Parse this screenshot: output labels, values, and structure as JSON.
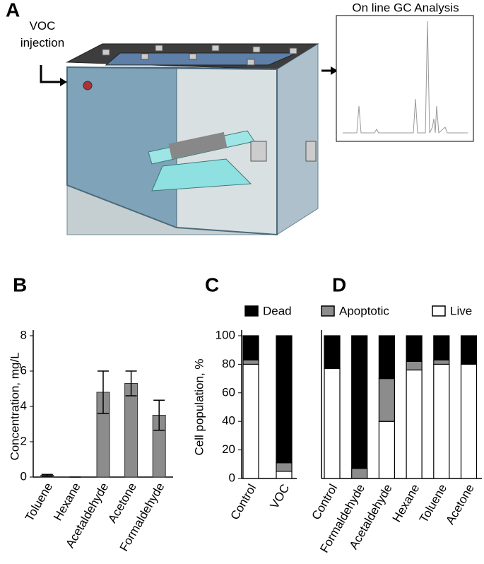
{
  "panel_a": {
    "label": "A",
    "injection_label": "VOC injection",
    "gc_title": "On line GC Analysis"
  },
  "chart_data": [
    {
      "type": "bar",
      "label": "B",
      "y_label": "Concentration, mg/L",
      "categories": [
        "Toluene",
        "Hexane",
        "Acetaldehyde",
        "Acetone",
        "Formaldehyde"
      ],
      "values": [
        0.1,
        0,
        4.8,
        5.3,
        3.5
      ],
      "errors": [
        0.05,
        0,
        1.2,
        0.7,
        0.85
      ],
      "color": "#8c8c8c",
      "ylim": [
        0,
        8
      ],
      "yticks": [
        0,
        2,
        4,
        6,
        8
      ]
    },
    {
      "type": "stacked_bar",
      "label": "C",
      "y_label": "Cell population, %",
      "categories": [
        "Control",
        "VOC"
      ],
      "series": [
        {
          "name": "Live",
          "color": "#ffffff",
          "values": [
            80,
            5
          ]
        },
        {
          "name": "Apoptotic",
          "color": "#8c8c8c",
          "values": [
            3,
            6
          ]
        },
        {
          "name": "Dead",
          "color": "#000000",
          "values": [
            17,
            89
          ]
        }
      ],
      "ylim": [
        0,
        100
      ],
      "yticks": [
        0,
        20,
        40,
        60,
        80,
        100
      ]
    },
    {
      "type": "stacked_bar",
      "label": "D",
      "categories": [
        "Control",
        "Formaldehyde",
        "Acetaldehyde",
        "Hexane",
        "Toluene",
        "Acetone"
      ],
      "series": [
        {
          "color": "#ffffff",
          "values": [
            77,
            0,
            40,
            76,
            80,
            80
          ]
        },
        {
          "color": "#8c8c8c",
          "values": [
            0,
            7,
            30,
            6,
            3,
            0
          ]
        },
        {
          "color": "#000000",
          "values": [
            23,
            93,
            30,
            18,
            17,
            20
          ]
        }
      ],
      "ylim": [
        0,
        100
      ]
    }
  ]
}
